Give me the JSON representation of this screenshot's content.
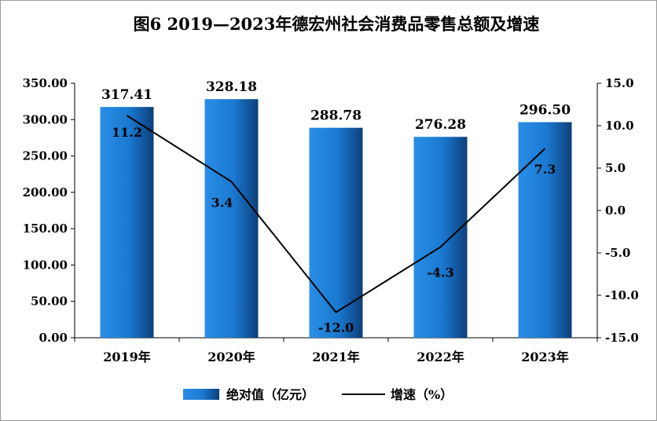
{
  "chart_data": {
    "type": "bar",
    "title": "图6 2019—2023年德宏州社会消费品零售总额及增速",
    "categories": [
      "2019年",
      "2020年",
      "2021年",
      "2022年",
      "2023年"
    ],
    "series": [
      {
        "name": "绝对值（亿元）",
        "type": "bar",
        "axis": "left",
        "values": [
          317.41,
          328.18,
          288.78,
          276.28,
          296.5
        ],
        "labels": [
          "317.41",
          "328.18",
          "288.78",
          "276.28",
          "296.50"
        ],
        "color": "#1f7fd6"
      },
      {
        "name": "增速（%）",
        "type": "line",
        "axis": "right",
        "values": [
          11.2,
          3.4,
          -12.0,
          -4.3,
          7.3
        ],
        "labels": [
          "11.2",
          "3.4",
          "-12.0",
          "-4.3",
          "7.3"
        ],
        "color": "#000000"
      }
    ],
    "y_left": {
      "min": 0,
      "max": 350,
      "step": 50,
      "ticks": [
        "0.00",
        "50.00",
        "100.00",
        "150.00",
        "200.00",
        "250.00",
        "300.00",
        "350.00"
      ]
    },
    "y_right": {
      "min": -15,
      "max": 15,
      "step": 5,
      "ticks": [
        "-15.0",
        "-10.0",
        "-5.0",
        "0.0",
        "5.0",
        "10.0",
        "15.0"
      ]
    },
    "legend": [
      "绝对值（亿元）",
      "增速（%）"
    ],
    "legend_position": "bottom",
    "grid": false
  }
}
